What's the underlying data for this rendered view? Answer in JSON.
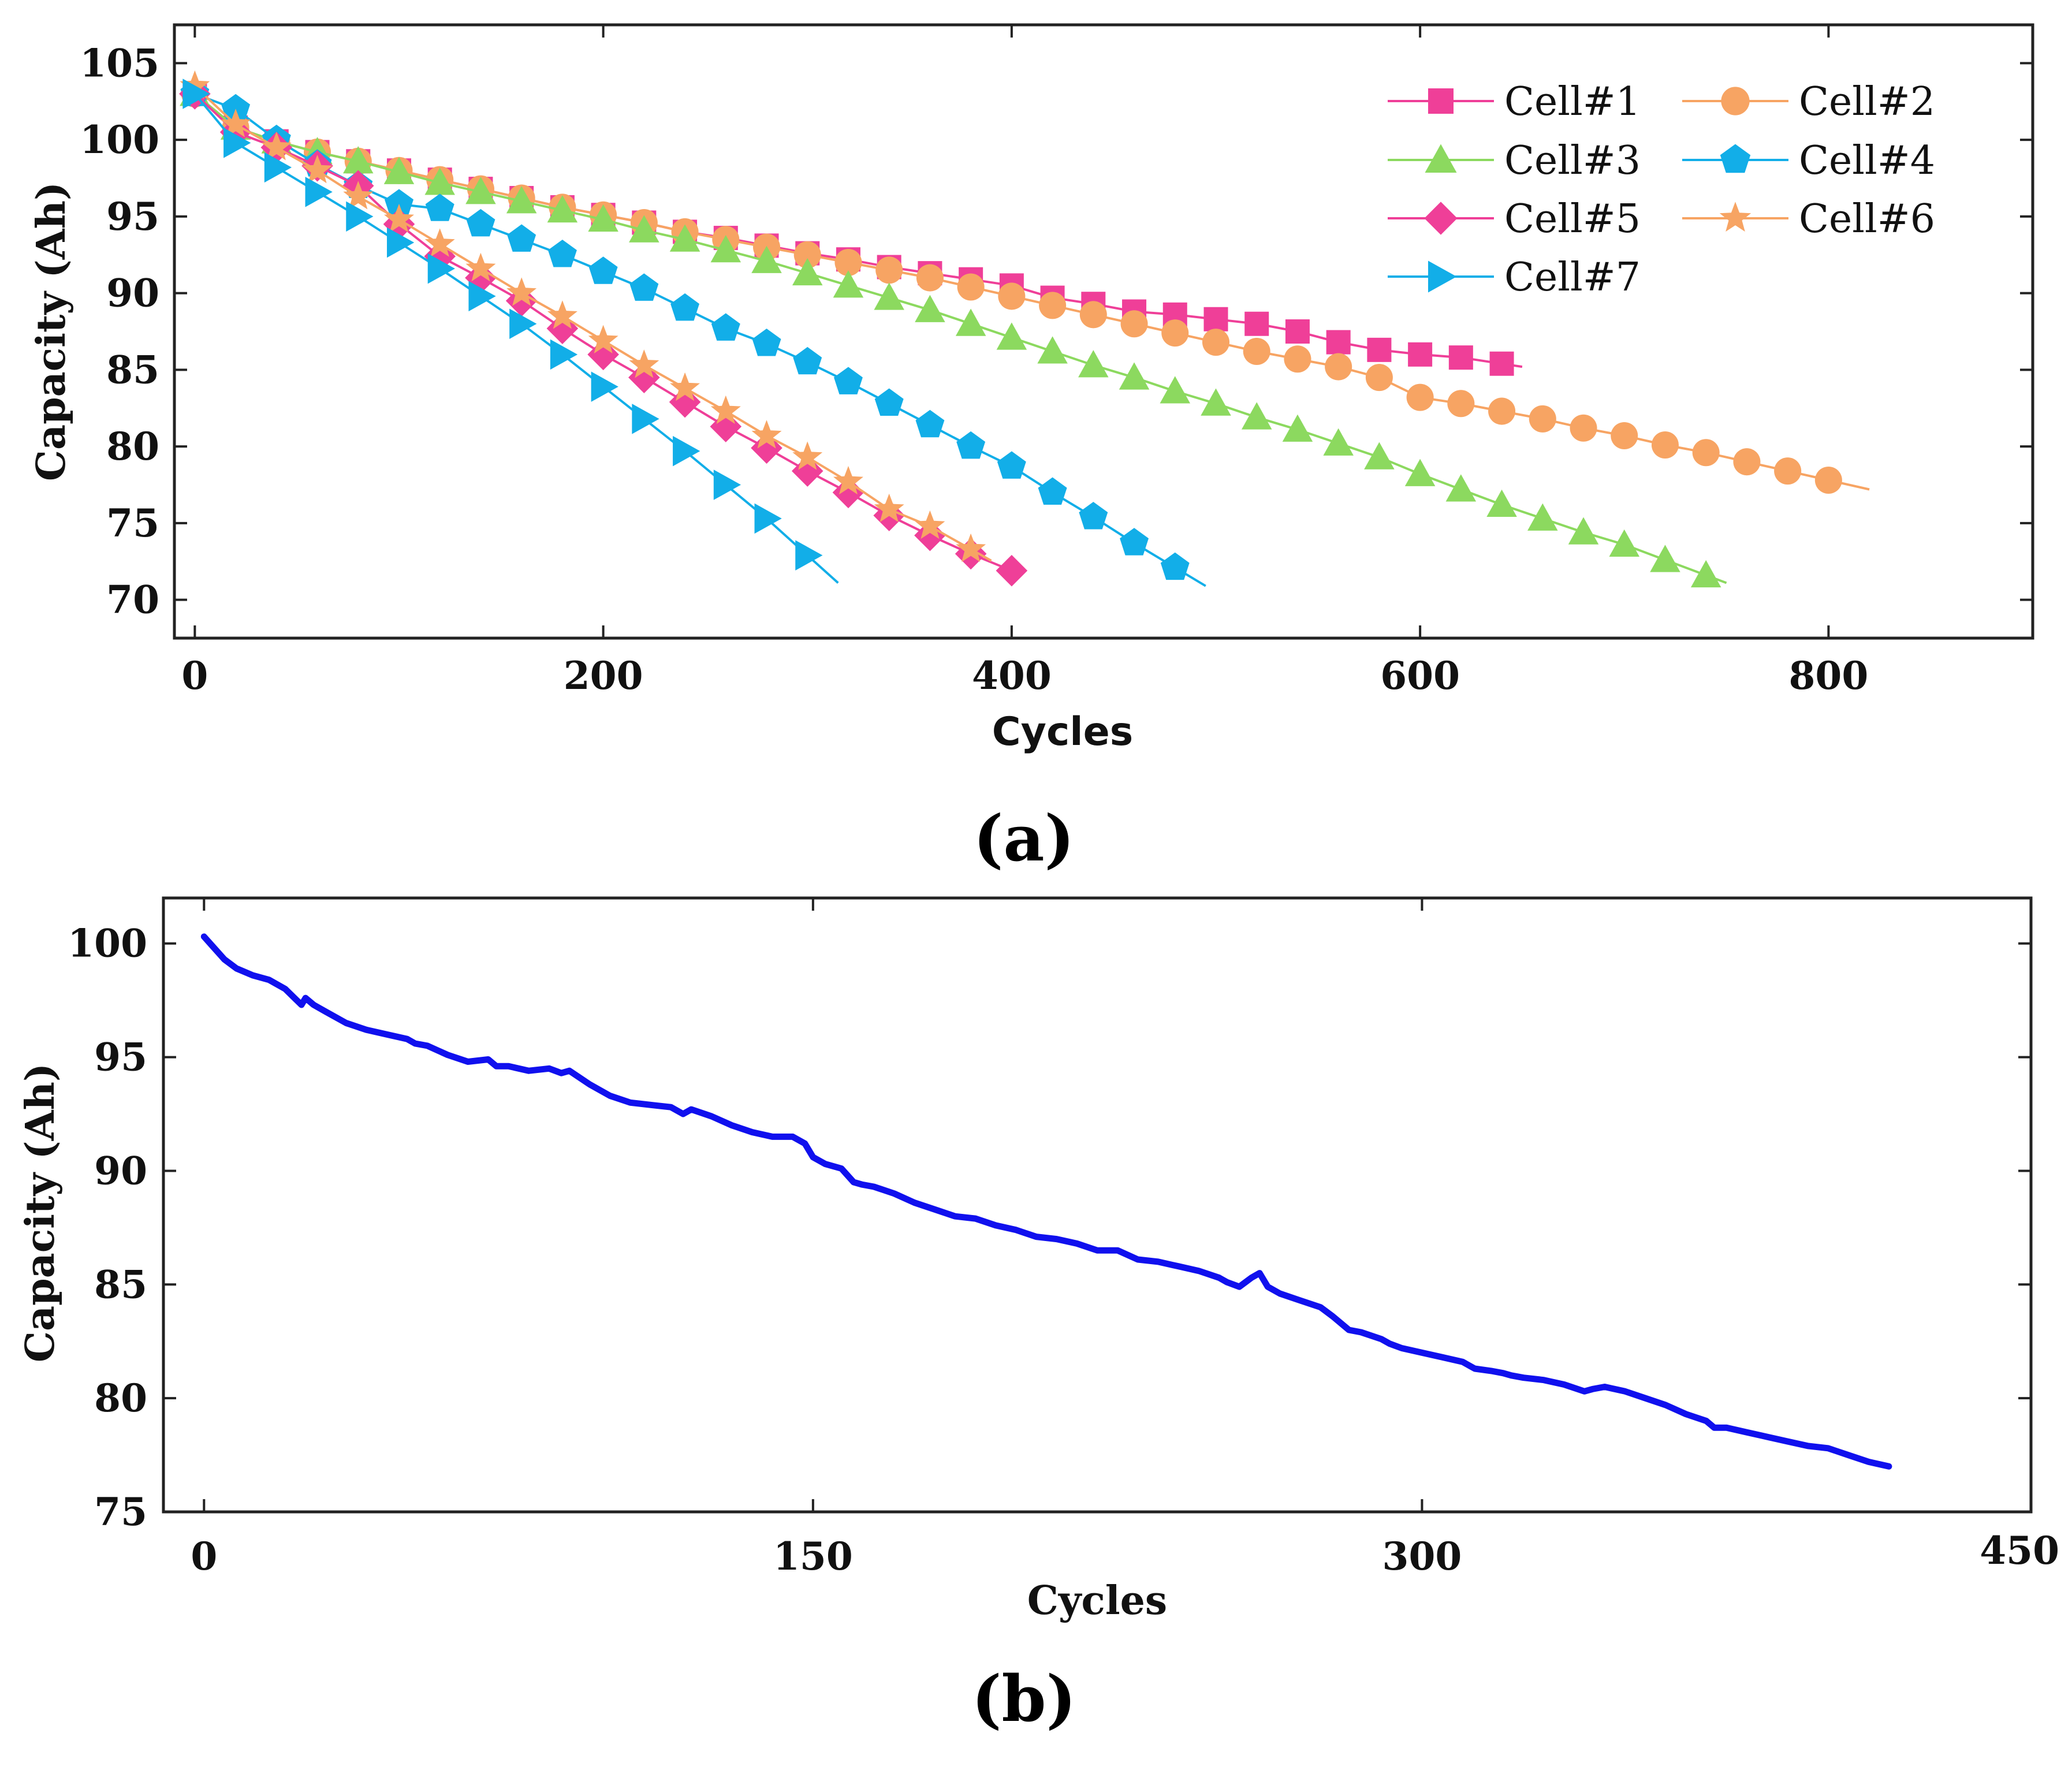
{
  "colors": {
    "cell1": "#ef3f98",
    "cell2": "#f7a463",
    "cell3": "#8cd95f",
    "cell4": "#12aee8",
    "cell5": "#ef3f98",
    "cell6": "#f7a463",
    "cell7": "#12aee8",
    "panel_b_line": "#1010ee"
  },
  "chart_data": [
    {
      "type": "line",
      "panel_label": "(a)",
      "xlabel": "Cycles",
      "ylabel": "Capacity (Ah)",
      "xlim": [
        -10,
        900
      ],
      "ylim": [
        67.5,
        107.5
      ],
      "xticks": [
        0,
        200,
        400,
        600,
        800
      ],
      "yticks": [
        70,
        75,
        80,
        85,
        90,
        95,
        100,
        105
      ],
      "xtick_labels": [
        "0",
        "200",
        "400",
        "600",
        "800"
      ],
      "ytick_labels": [
        "70",
        "75",
        "80",
        "85",
        "90",
        "95",
        "100",
        "105"
      ],
      "legend_position": "top-right",
      "series": [
        {
          "name": "Cell#1",
          "marker": "square",
          "color_key": "cell1",
          "end": 650,
          "x": [
            0,
            20,
            40,
            60,
            80,
            100,
            120,
            140,
            160,
            180,
            200,
            220,
            240,
            260,
            280,
            300,
            320,
            340,
            360,
            380,
            400,
            420,
            440,
            460,
            480,
            500,
            520,
            540,
            560,
            580,
            600,
            620,
            640
          ],
          "y": [
            103.0,
            100.8,
            99.9,
            99.2,
            98.6,
            98.0,
            97.4,
            96.8,
            96.2,
            95.6,
            95.1,
            94.6,
            94.0,
            93.6,
            93.1,
            92.6,
            92.2,
            91.7,
            91.3,
            90.9,
            90.5,
            89.7,
            89.3,
            88.8,
            88.6,
            88.3,
            88.0,
            87.5,
            86.8,
            86.3,
            86.0,
            85.8,
            85.4
          ]
        },
        {
          "name": "Cell#2",
          "marker": "circle",
          "color_key": "cell2",
          "end": 820,
          "x": [
            0,
            20,
            40,
            60,
            80,
            100,
            120,
            140,
            160,
            180,
            200,
            220,
            240,
            260,
            280,
            300,
            320,
            340,
            360,
            380,
            400,
            420,
            440,
            460,
            480,
            500,
            520,
            540,
            560,
            580,
            600,
            620,
            640,
            660,
            680,
            700,
            720,
            740,
            760,
            780,
            800
          ],
          "y": [
            103.0,
            100.8,
            99.9,
            99.2,
            98.6,
            98.0,
            97.4,
            96.8,
            96.2,
            95.6,
            95.1,
            94.6,
            94.0,
            93.5,
            93.0,
            92.5,
            92.0,
            91.5,
            91.0,
            90.4,
            89.8,
            89.2,
            88.6,
            88.0,
            87.4,
            86.8,
            86.2,
            85.7,
            85.2,
            84.5,
            83.2,
            82.8,
            82.3,
            81.8,
            81.2,
            80.7,
            80.1,
            79.6,
            79.0,
            78.4,
            77.8
          ]
        },
        {
          "name": "Cell#3",
          "marker": "triangle-up",
          "color_key": "cell3",
          "end": 750,
          "x": [
            0,
            20,
            40,
            60,
            80,
            100,
            120,
            140,
            160,
            180,
            200,
            220,
            240,
            260,
            280,
            300,
            320,
            340,
            360,
            380,
            400,
            420,
            440,
            460,
            480,
            500,
            520,
            540,
            560,
            580,
            600,
            620,
            640,
            660,
            680,
            700,
            720,
            740
          ],
          "y": [
            103.0,
            100.8,
            99.9,
            99.2,
            98.6,
            97.9,
            97.2,
            96.6,
            96.0,
            95.4,
            94.8,
            94.1,
            93.5,
            92.8,
            92.1,
            91.3,
            90.5,
            89.7,
            88.9,
            88.0,
            87.1,
            86.2,
            85.3,
            84.5,
            83.6,
            82.8,
            81.9,
            81.1,
            80.2,
            79.3,
            78.2,
            77.2,
            76.2,
            75.3,
            74.4,
            73.6,
            72.6,
            71.6
          ]
        },
        {
          "name": "Cell#4",
          "marker": "pentagon",
          "color_key": "cell4",
          "end": 495,
          "x": [
            0,
            20,
            40,
            60,
            80,
            100,
            120,
            140,
            160,
            180,
            200,
            220,
            240,
            260,
            280,
            300,
            320,
            340,
            360,
            380,
            400,
            420,
            440,
            460,
            480
          ],
          "y": [
            103.0,
            102.0,
            100.0,
            98.4,
            97.0,
            95.8,
            95.5,
            94.5,
            93.5,
            92.5,
            91.4,
            90.3,
            89.0,
            87.7,
            86.7,
            85.5,
            84.2,
            82.8,
            81.4,
            80.0,
            78.7,
            77.0,
            75.4,
            73.7,
            72.1
          ]
        },
        {
          "name": "Cell#5",
          "marker": "diamond",
          "color_key": "cell5",
          "end": 400,
          "x": [
            0,
            20,
            40,
            60,
            80,
            100,
            120,
            140,
            160,
            180,
            200,
            220,
            240,
            260,
            280,
            300,
            320,
            340,
            360,
            380,
            400
          ],
          "y": [
            103.0,
            100.5,
            99.5,
            98.3,
            97.0,
            94.5,
            92.4,
            91.0,
            89.5,
            87.7,
            86.0,
            84.5,
            82.9,
            81.3,
            79.9,
            78.4,
            77.0,
            75.5,
            74.2,
            73.0,
            71.9
          ]
        },
        {
          "name": "Cell#6",
          "marker": "star",
          "color_key": "cell6",
          "end": 390,
          "x": [
            0,
            20,
            40,
            60,
            80,
            100,
            120,
            140,
            160,
            180,
            200,
            220,
            240,
            260,
            280,
            300,
            320,
            340,
            360,
            380
          ],
          "y": [
            103.5,
            101.0,
            99.5,
            98.0,
            96.3,
            94.8,
            93.2,
            91.6,
            90.0,
            88.5,
            86.9,
            85.3,
            83.8,
            82.3,
            80.7,
            79.3,
            77.7,
            75.9,
            74.8,
            73.3
          ]
        },
        {
          "name": "Cell#7",
          "marker": "triangle-right",
          "color_key": "cell7",
          "end": 315,
          "x": [
            0,
            20,
            40,
            60,
            80,
            100,
            120,
            140,
            160,
            180,
            200,
            220,
            240,
            260,
            280,
            300
          ],
          "y": [
            103.0,
            99.8,
            98.2,
            96.6,
            95.0,
            93.3,
            91.6,
            89.8,
            88.0,
            86.0,
            83.9,
            81.8,
            79.7,
            77.5,
            75.3,
            72.9
          ]
        }
      ]
    },
    {
      "type": "line",
      "panel_label": "(b)",
      "xlabel": "Cycles",
      "ylabel": "Capacity (Ah)",
      "xlim": [
        -10,
        450
      ],
      "ylim": [
        75,
        102
      ],
      "xticks": [
        0,
        150,
        300,
        450
      ],
      "yticks": [
        75,
        80,
        85,
        90,
        95,
        100
      ],
      "xtick_labels": [
        "0",
        "150",
        "300",
        "450"
      ],
      "ytick_labels": [
        "75",
        "80",
        "85",
        "90",
        "95",
        "100"
      ],
      "series": [
        {
          "name": "Capacity",
          "color_key": "panel_b_line",
          "x": [
            0,
            2,
            5,
            8,
            12,
            16,
            20,
            24,
            25,
            27,
            30,
            35,
            40,
            45,
            50,
            52,
            55,
            60,
            65,
            70,
            72,
            75,
            80,
            85,
            88,
            90,
            95,
            100,
            105,
            110,
            115,
            118,
            120,
            125,
            130,
            135,
            140,
            145,
            148,
            150,
            153,
            157,
            160,
            162,
            165,
            170,
            175,
            180,
            185,
            190,
            195,
            200,
            205,
            210,
            215,
            220,
            225,
            230,
            235,
            240,
            245,
            250,
            252,
            255,
            258,
            260,
            262,
            265,
            270,
            275,
            278,
            282,
            285,
            290,
            292,
            295,
            300,
            305,
            310,
            313,
            317,
            320,
            322,
            325,
            330,
            335,
            340,
            342,
            345,
            350,
            355,
            360,
            365,
            370,
            372,
            375,
            380,
            385,
            390,
            395,
            400,
            405,
            410,
            415
          ],
          "y": [
            100.3,
            99.9,
            99.3,
            98.9,
            98.6,
            98.4,
            98.0,
            97.3,
            97.6,
            97.3,
            97.0,
            96.5,
            96.2,
            96.0,
            95.8,
            95.6,
            95.5,
            95.1,
            94.8,
            94.9,
            94.6,
            94.6,
            94.4,
            94.5,
            94.3,
            94.4,
            93.8,
            93.3,
            93.0,
            92.9,
            92.8,
            92.5,
            92.7,
            92.4,
            92.0,
            91.7,
            91.5,
            91.5,
            91.2,
            90.6,
            90.3,
            90.1,
            89.5,
            89.4,
            89.3,
            89.0,
            88.6,
            88.3,
            88.0,
            87.9,
            87.6,
            87.4,
            87.1,
            87.0,
            86.8,
            86.5,
            86.5,
            86.1,
            86.0,
            85.8,
            85.6,
            85.3,
            85.1,
            84.9,
            85.3,
            85.5,
            84.9,
            84.6,
            84.3,
            84.0,
            83.6,
            83.0,
            82.9,
            82.6,
            82.4,
            82.2,
            82.0,
            81.8,
            81.6,
            81.3,
            81.2,
            81.1,
            81.0,
            80.9,
            80.8,
            80.6,
            80.3,
            80.4,
            80.5,
            80.3,
            80.0,
            79.7,
            79.3,
            79.0,
            78.7,
            78.7,
            78.5,
            78.3,
            78.1,
            77.9,
            77.8,
            77.5,
            77.2,
            77.0
          ]
        }
      ]
    }
  ]
}
